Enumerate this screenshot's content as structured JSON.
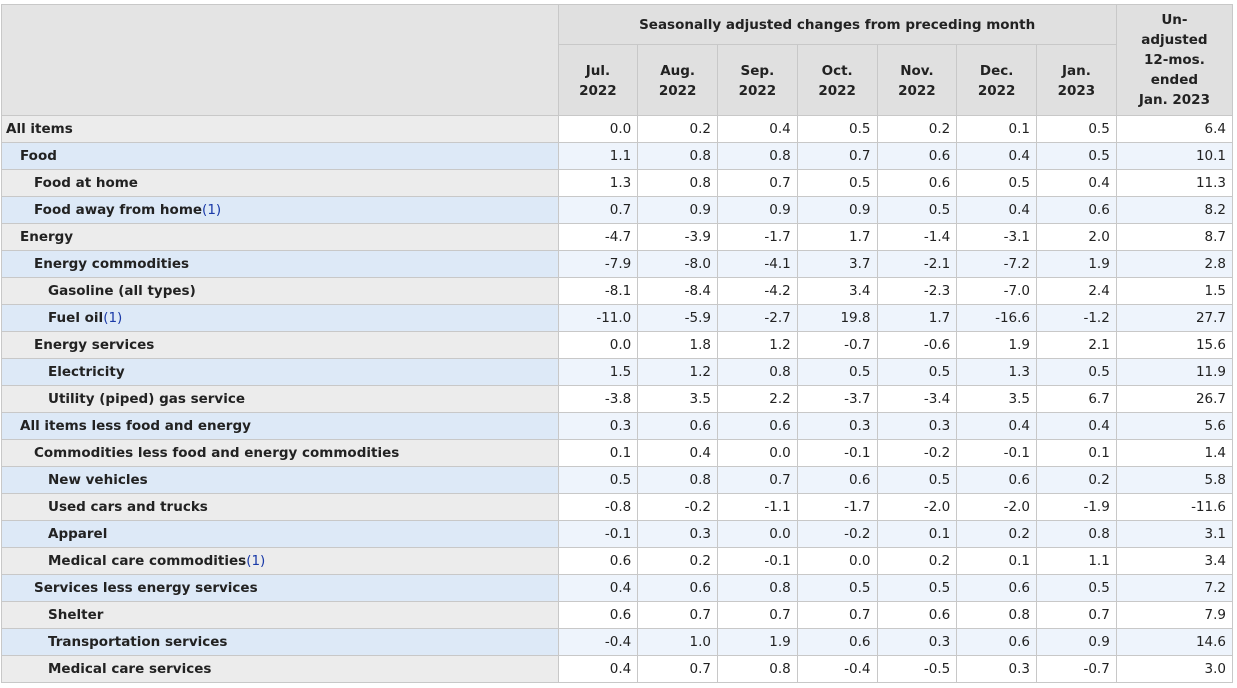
{
  "header": {
    "group_title": "Seasonally adjusted changes from preceding month",
    "unadjusted_title": [
      "Un-",
      "adjusted",
      "12-mos.",
      "ended",
      "Jan. 2023"
    ],
    "months": [
      [
        "Jul.",
        "2022"
      ],
      [
        "Aug.",
        "2022"
      ],
      [
        "Sep.",
        "2022"
      ],
      [
        "Oct.",
        "2022"
      ],
      [
        "Nov.",
        "2022"
      ],
      [
        "Dec.",
        "2022"
      ],
      [
        "Jan.",
        "2023"
      ]
    ]
  },
  "rows": [
    {
      "label": "All items",
      "footnote": "",
      "level": 0,
      "values": [
        "0.0",
        "0.2",
        "0.4",
        "0.5",
        "0.2",
        "0.1",
        "0.5",
        "6.4"
      ]
    },
    {
      "label": "Food",
      "footnote": "",
      "level": 1,
      "values": [
        "1.1",
        "0.8",
        "0.8",
        "0.7",
        "0.6",
        "0.4",
        "0.5",
        "10.1"
      ]
    },
    {
      "label": "Food at home",
      "footnote": "",
      "level": 2,
      "values": [
        "1.3",
        "0.8",
        "0.7",
        "0.5",
        "0.6",
        "0.5",
        "0.4",
        "11.3"
      ]
    },
    {
      "label": "Food away from home",
      "footnote": "(1)",
      "level": 2,
      "values": [
        "0.7",
        "0.9",
        "0.9",
        "0.9",
        "0.5",
        "0.4",
        "0.6",
        "8.2"
      ]
    },
    {
      "label": "Energy",
      "footnote": "",
      "level": 1,
      "values": [
        "-4.7",
        "-3.9",
        "-1.7",
        "1.7",
        "-1.4",
        "-3.1",
        "2.0",
        "8.7"
      ]
    },
    {
      "label": "Energy commodities",
      "footnote": "",
      "level": 2,
      "values": [
        "-7.9",
        "-8.0",
        "-4.1",
        "3.7",
        "-2.1",
        "-7.2",
        "1.9",
        "2.8"
      ]
    },
    {
      "label": "Gasoline (all types)",
      "footnote": "",
      "level": 3,
      "values": [
        "-8.1",
        "-8.4",
        "-4.2",
        "3.4",
        "-2.3",
        "-7.0",
        "2.4",
        "1.5"
      ]
    },
    {
      "label": "Fuel oil",
      "footnote": "(1)",
      "level": 3,
      "values": [
        "-11.0",
        "-5.9",
        "-2.7",
        "19.8",
        "1.7",
        "-16.6",
        "-1.2",
        "27.7"
      ]
    },
    {
      "label": "Energy services",
      "footnote": "",
      "level": 2,
      "values": [
        "0.0",
        "1.8",
        "1.2",
        "-0.7",
        "-0.6",
        "1.9",
        "2.1",
        "15.6"
      ]
    },
    {
      "label": "Electricity",
      "footnote": "",
      "level": 3,
      "values": [
        "1.5",
        "1.2",
        "0.8",
        "0.5",
        "0.5",
        "1.3",
        "0.5",
        "11.9"
      ]
    },
    {
      "label": "Utility (piped) gas service",
      "footnote": "",
      "level": 3,
      "values": [
        "-3.8",
        "3.5",
        "2.2",
        "-3.7",
        "-3.4",
        "3.5",
        "6.7",
        "26.7"
      ]
    },
    {
      "label": "All items less food and energy",
      "footnote": "",
      "level": 1,
      "values": [
        "0.3",
        "0.6",
        "0.6",
        "0.3",
        "0.3",
        "0.4",
        "0.4",
        "5.6"
      ]
    },
    {
      "label": "Commodities less food and energy commodities",
      "footnote": "",
      "level": 2,
      "values": [
        "0.1",
        "0.4",
        "0.0",
        "-0.1",
        "-0.2",
        "-0.1",
        "0.1",
        "1.4"
      ]
    },
    {
      "label": "New vehicles",
      "footnote": "",
      "level": 3,
      "values": [
        "0.5",
        "0.8",
        "0.7",
        "0.6",
        "0.5",
        "0.6",
        "0.2",
        "5.8"
      ]
    },
    {
      "label": "Used cars and trucks",
      "footnote": "",
      "level": 3,
      "values": [
        "-0.8",
        "-0.2",
        "-1.1",
        "-1.7",
        "-2.0",
        "-2.0",
        "-1.9",
        "-11.6"
      ]
    },
    {
      "label": "Apparel",
      "footnote": "",
      "level": 3,
      "values": [
        "-0.1",
        "0.3",
        "0.0",
        "-0.2",
        "0.1",
        "0.2",
        "0.8",
        "3.1"
      ]
    },
    {
      "label": "Medical care commodities",
      "footnote": "(1)",
      "level": 3,
      "values": [
        "0.6",
        "0.2",
        "-0.1",
        "0.0",
        "0.2",
        "0.1",
        "1.1",
        "3.4"
      ]
    },
    {
      "label": "Services less energy services",
      "footnote": "",
      "level": 2,
      "values": [
        "0.4",
        "0.6",
        "0.8",
        "0.5",
        "0.5",
        "0.6",
        "0.5",
        "7.2"
      ]
    },
    {
      "label": "Shelter",
      "footnote": "",
      "level": 3,
      "values": [
        "0.6",
        "0.7",
        "0.7",
        "0.7",
        "0.6",
        "0.8",
        "0.7",
        "7.9"
      ]
    },
    {
      "label": "Transportation services",
      "footnote": "",
      "level": 3,
      "values": [
        "-0.4",
        "1.0",
        "1.9",
        "0.6",
        "0.3",
        "0.6",
        "0.9",
        "14.6"
      ]
    },
    {
      "label": "Medical care services",
      "footnote": "",
      "level": 3,
      "values": [
        "0.4",
        "0.7",
        "0.8",
        "-0.4",
        "-0.5",
        "0.3",
        "-0.7",
        "3.0"
      ]
    }
  ]
}
